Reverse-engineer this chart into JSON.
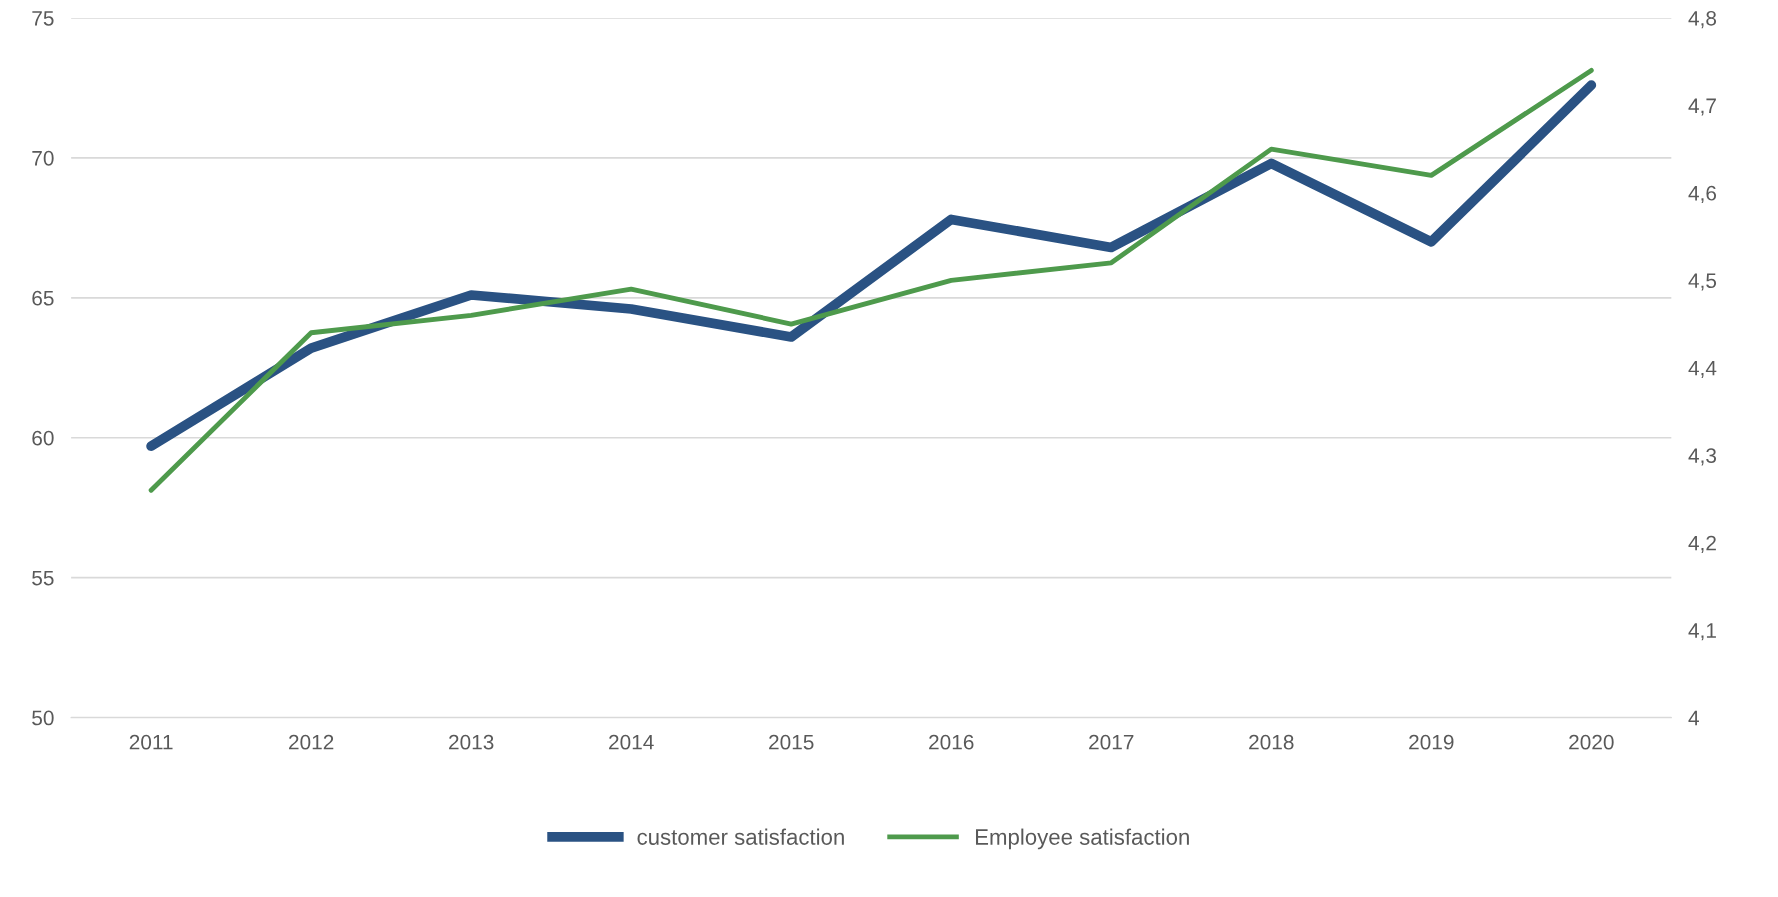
{
  "chart_data": {
    "type": "line",
    "categories": [
      "2011",
      "2012",
      "2013",
      "2014",
      "2015",
      "2016",
      "2017",
      "2018",
      "2019",
      "2020"
    ],
    "series": [
      {
        "name": "customer satisfaction",
        "color": "#2a5283",
        "values": [
          59.7,
          63.2,
          65.1,
          64.6,
          63.6,
          67.8,
          66.8,
          69.8,
          67.0,
          72.6
        ]
      },
      {
        "name": "Employee satisfaction",
        "color": "#4e9a4c",
        "axis": "y2",
        "values": [
          4.26,
          4.44,
          4.46,
          4.49,
          4.45,
          4.5,
          4.52,
          4.65,
          4.62,
          4.74
        ]
      }
    ],
    "ylim": [
      50,
      75
    ],
    "yticks": [
      50,
      55,
      60,
      65,
      70,
      75
    ],
    "y2lim": [
      4,
      4.8
    ],
    "y2ticks": [
      4,
      {
        "value": 4.1,
        "label": "4,1"
      },
      {
        "value": 4.2,
        "label": "4,2"
      },
      {
        "value": 4.3,
        "label": "4,3"
      },
      {
        "value": 4.4,
        "label": "4,4"
      },
      {
        "value": 4.5,
        "label": "4,5"
      },
      {
        "value": 4.6,
        "label": "4,6"
      },
      {
        "value": 4.7,
        "label": "4,7"
      },
      {
        "value": 4.8,
        "label": "4,8"
      }
    ],
    "grid": "y",
    "legend": "bottom",
    "marker": "none",
    "line_style": "solid"
  }
}
